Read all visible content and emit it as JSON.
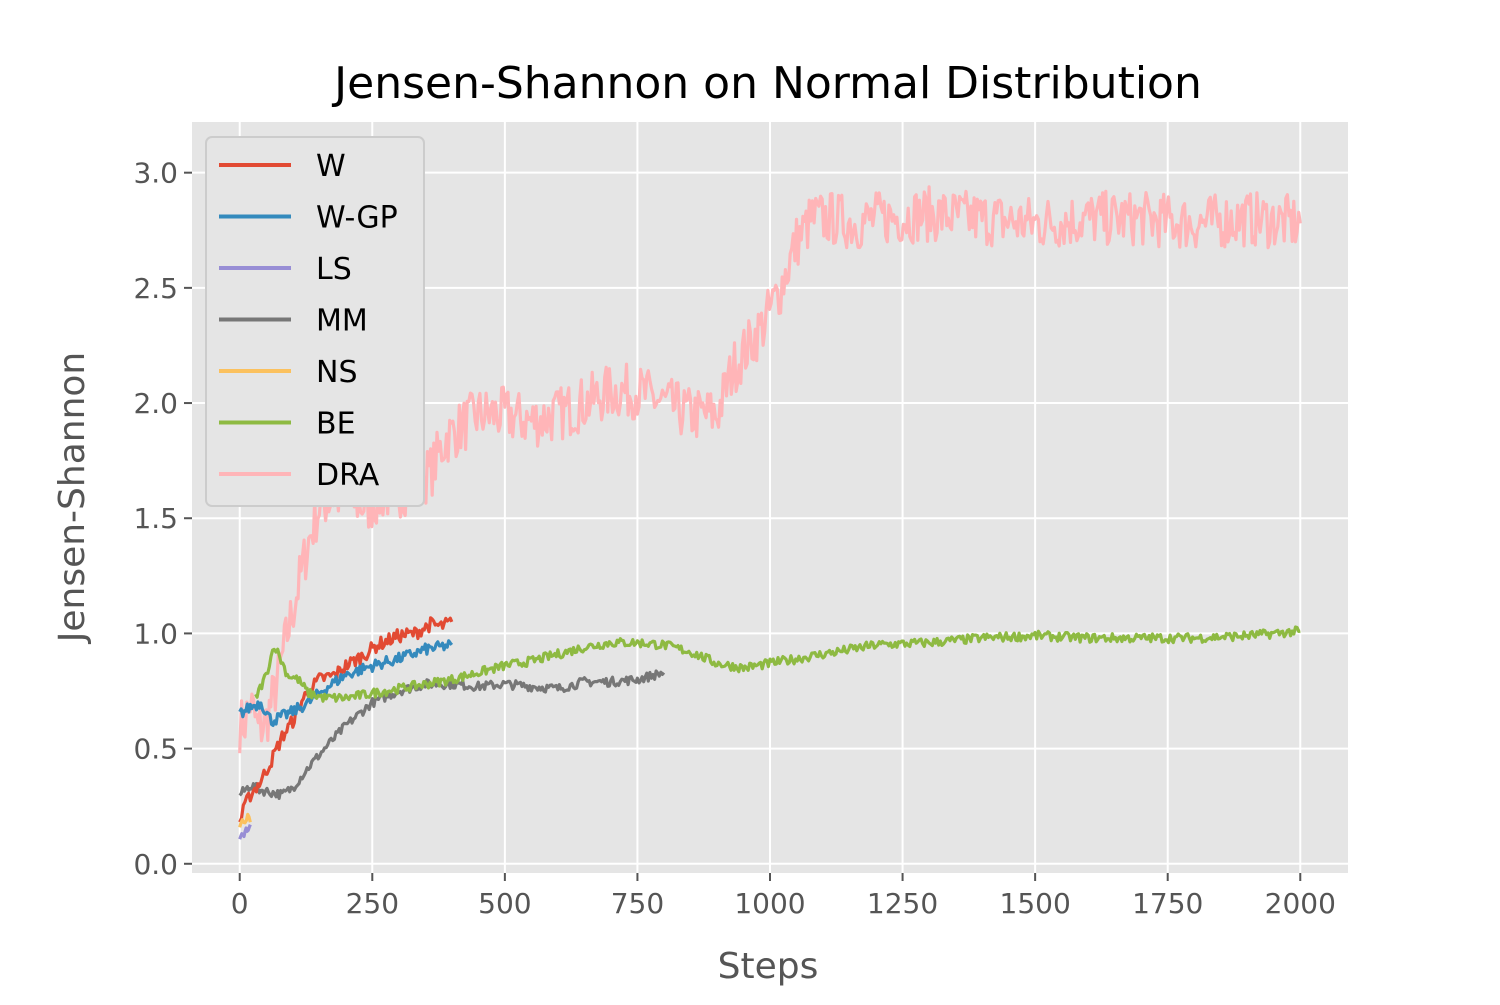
{
  "chart_data": {
    "type": "line",
    "title": "Jensen-Shannon on Normal Distribution",
    "xlabel": "Steps",
    "ylabel": "Jensen-Shannon",
    "xlim": [
      -90,
      2090
    ],
    "ylim": [
      -0.04,
      3.22
    ],
    "xticks": [
      0,
      250,
      500,
      750,
      1000,
      1250,
      1500,
      1750,
      2000
    ],
    "yticks": [
      0.0,
      0.5,
      1.0,
      1.5,
      2.0,
      2.5,
      3.0
    ],
    "xtick_labels": [
      "0",
      "250",
      "500",
      "750",
      "1000",
      "1250",
      "1500",
      "1750",
      "2000"
    ],
    "ytick_labels": [
      "0.0",
      "0.5",
      "1.0",
      "1.5",
      "2.0",
      "2.5",
      "3.0"
    ],
    "grid": true,
    "legend_position": "upper-left",
    "background": "#e5e5e5",
    "series": [
      {
        "name": "W",
        "color": "#e24a33",
        "x": [
          0,
          10,
          20,
          40,
          60,
          80,
          100,
          120,
          150,
          180,
          200,
          230,
          260,
          300,
          330,
          360,
          380,
          400
        ],
        "y": [
          0.18,
          0.25,
          0.3,
          0.36,
          0.45,
          0.55,
          0.62,
          0.72,
          0.8,
          0.82,
          0.86,
          0.9,
          0.95,
          0.99,
          1.0,
          1.04,
          1.03,
          1.05
        ]
      },
      {
        "name": "W-GP",
        "color": "#348abd",
        "x": [
          0,
          20,
          40,
          60,
          80,
          100,
          130,
          160,
          200,
          250,
          300,
          350,
          400
        ],
        "y": [
          0.65,
          0.68,
          0.7,
          0.62,
          0.64,
          0.66,
          0.7,
          0.76,
          0.82,
          0.86,
          0.89,
          0.93,
          0.95
        ]
      },
      {
        "name": "LS",
        "color": "#988ed5",
        "x": [
          0,
          4,
          8,
          12,
          16,
          20
        ],
        "y": [
          0.1,
          0.13,
          0.12,
          0.15,
          0.14,
          0.17
        ]
      },
      {
        "name": "MM",
        "color": "#777777",
        "x": [
          0,
          20,
          40,
          60,
          80,
          100,
          130,
          160,
          200,
          250,
          300,
          350,
          400,
          450,
          500,
          550,
          600,
          650,
          700,
          750,
          800
        ],
        "y": [
          0.3,
          0.34,
          0.32,
          0.31,
          0.3,
          0.33,
          0.42,
          0.5,
          0.6,
          0.7,
          0.75,
          0.78,
          0.78,
          0.77,
          0.78,
          0.77,
          0.76,
          0.79,
          0.79,
          0.8,
          0.83
        ]
      },
      {
        "name": "NS",
        "color": "#fbc15e",
        "x": [
          0,
          5,
          10,
          15,
          20
        ],
        "y": [
          0.15,
          0.2,
          0.17,
          0.22,
          0.18
        ]
      },
      {
        "name": "BE",
        "color": "#8eba42",
        "x": [
          30,
          50,
          65,
          75,
          90,
          110,
          130,
          160,
          200,
          250,
          300,
          350,
          400,
          450,
          500,
          550,
          600,
          650,
          700,
          750,
          800,
          850,
          900,
          950,
          1000,
          1100,
          1200,
          1300,
          1400,
          1500,
          1600,
          1700,
          1800,
          1900,
          2000
        ],
        "y": [
          0.72,
          0.82,
          0.95,
          0.9,
          0.82,
          0.8,
          0.74,
          0.72,
          0.72,
          0.74,
          0.76,
          0.78,
          0.8,
          0.83,
          0.86,
          0.88,
          0.91,
          0.94,
          0.96,
          0.96,
          0.95,
          0.92,
          0.87,
          0.85,
          0.87,
          0.91,
          0.95,
          0.96,
          0.98,
          0.99,
          0.98,
          0.98,
          0.98,
          0.99,
          1.01
        ]
      },
      {
        "name": "DRA",
        "color": "#ffb5b8",
        "x": [
          0,
          10,
          20,
          35,
          50,
          70,
          90,
          110,
          130,
          150,
          180,
          210,
          240,
          270,
          300,
          330,
          360,
          390,
          420,
          450,
          500,
          550,
          600,
          650,
          700,
          750,
          800,
          850,
          900,
          930,
          960,
          990,
          1020,
          1050,
          1080,
          1120,
          1160,
          1200,
          1300,
          1400,
          1500,
          1600,
          1700,
          1800,
          1900,
          2000
        ],
        "y": [
          0.6,
          0.62,
          0.7,
          0.58,
          0.62,
          0.78,
          1.0,
          1.2,
          1.4,
          1.55,
          1.6,
          1.58,
          1.55,
          1.6,
          1.62,
          1.65,
          1.7,
          1.85,
          1.9,
          1.95,
          1.95,
          1.92,
          1.95,
          2.0,
          2.05,
          2.05,
          2.0,
          1.95,
          1.95,
          2.15,
          2.25,
          2.35,
          2.5,
          2.7,
          2.8,
          2.8,
          2.78,
          2.8,
          2.82,
          2.8,
          2.78,
          2.8,
          2.8,
          2.78,
          2.8,
          2.78
        ]
      }
    ]
  }
}
